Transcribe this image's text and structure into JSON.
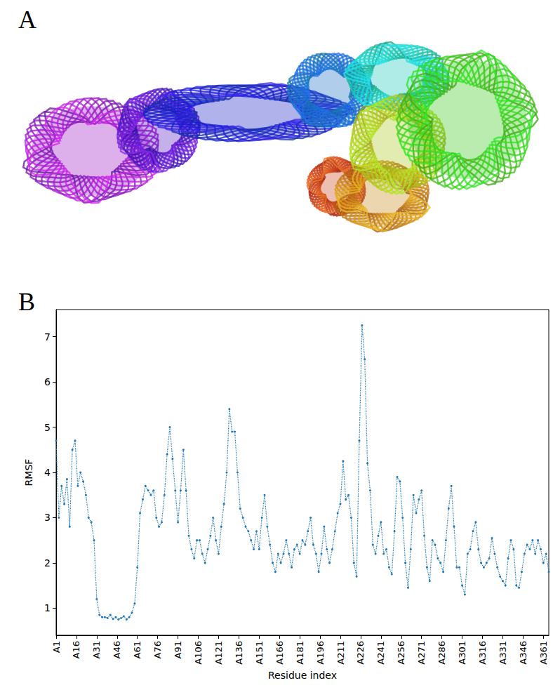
{
  "panel_labels": [
    "A",
    "B"
  ],
  "chart_data": {
    "type": "line",
    "x_label": "Residue index",
    "y_label": "RMSF",
    "color": "#1f77b4",
    "marker": "circle",
    "line_style": "dotted",
    "grid": false,
    "xlim": [
      1,
      365
    ],
    "ylim": [
      0.4,
      7.6
    ],
    "yticks": [
      1,
      2,
      3,
      4,
      5,
      6,
      7
    ],
    "xticks": [
      {
        "value": 1,
        "label": "A1"
      },
      {
        "value": 16,
        "label": "A16"
      },
      {
        "value": 31,
        "label": "A31"
      },
      {
        "value": 46,
        "label": "A46"
      },
      {
        "value": 61,
        "label": "A61"
      },
      {
        "value": 76,
        "label": "A76"
      },
      {
        "value": 91,
        "label": "A91"
      },
      {
        "value": 106,
        "label": "A106"
      },
      {
        "value": 121,
        "label": "A121"
      },
      {
        "value": 136,
        "label": "A136"
      },
      {
        "value": 151,
        "label": "A151"
      },
      {
        "value": 166,
        "label": "A166"
      },
      {
        "value": 181,
        "label": "A181"
      },
      {
        "value": 196,
        "label": "A196"
      },
      {
        "value": 211,
        "label": "A211"
      },
      {
        "value": 226,
        "label": "A226"
      },
      {
        "value": 241,
        "label": "A241"
      },
      {
        "value": 256,
        "label": "A256"
      },
      {
        "value": 271,
        "label": "A271"
      },
      {
        "value": 286,
        "label": "A286"
      },
      {
        "value": 301,
        "label": "A301"
      },
      {
        "value": 316,
        "label": "A316"
      },
      {
        "value": 331,
        "label": "A331"
      },
      {
        "value": 346,
        "label": "A346"
      },
      {
        "value": 361,
        "label": "A361"
      }
    ],
    "x": [
      1,
      3,
      5,
      7,
      9,
      11,
      13,
      15,
      17,
      19,
      21,
      23,
      25,
      27,
      29,
      31,
      33,
      35,
      37,
      39,
      41,
      43,
      45,
      47,
      49,
      51,
      53,
      55,
      57,
      59,
      61,
      63,
      65,
      67,
      69,
      71,
      73,
      75,
      77,
      79,
      81,
      83,
      85,
      87,
      89,
      91,
      93,
      95,
      97,
      99,
      101,
      103,
      105,
      107,
      109,
      111,
      113,
      115,
      117,
      119,
      121,
      123,
      125,
      127,
      129,
      131,
      133,
      135,
      137,
      139,
      141,
      143,
      145,
      147,
      149,
      151,
      153,
      155,
      157,
      159,
      161,
      163,
      165,
      167,
      169,
      171,
      173,
      175,
      177,
      179,
      181,
      183,
      185,
      187,
      189,
      191,
      193,
      195,
      197,
      199,
      201,
      203,
      205,
      207,
      209,
      211,
      213,
      215,
      217,
      219,
      221,
      223,
      225,
      227,
      229,
      231,
      233,
      235,
      237,
      239,
      241,
      243,
      245,
      247,
      249,
      251,
      253,
      255,
      257,
      259,
      261,
      263,
      265,
      267,
      269,
      271,
      273,
      275,
      277,
      279,
      281,
      283,
      285,
      287,
      289,
      291,
      293,
      295,
      297,
      299,
      301,
      303,
      305,
      307,
      309,
      311,
      313,
      315,
      317,
      319,
      321,
      323,
      325,
      327,
      329,
      331,
      333,
      335,
      337,
      339,
      341,
      343,
      345,
      347,
      349,
      351,
      353,
      355,
      357,
      359,
      361,
      363,
      365
    ],
    "values": [
      4.7,
      3.0,
      3.7,
      3.3,
      3.85,
      2.8,
      4.5,
      4.7,
      3.7,
      4.0,
      3.8,
      3.5,
      3.0,
      2.9,
      2.5,
      1.2,
      0.85,
      0.8,
      0.8,
      0.78,
      0.85,
      0.76,
      0.8,
      0.75,
      0.78,
      0.82,
      0.75,
      0.8,
      0.9,
      1.1,
      1.9,
      3.1,
      3.4,
      3.7,
      3.6,
      3.5,
      3.6,
      3.0,
      2.8,
      2.9,
      3.5,
      4.4,
      5.0,
      4.3,
      3.6,
      2.9,
      3.6,
      4.5,
      3.6,
      2.6,
      2.3,
      2.1,
      2.5,
      2.5,
      2.2,
      2.0,
      2.3,
      2.6,
      3.0,
      2.5,
      2.2,
      2.8,
      3.3,
      4.0,
      5.4,
      4.9,
      4.9,
      4.0,
      3.2,
      3.0,
      2.8,
      2.7,
      2.5,
      2.3,
      2.7,
      2.3,
      3.0,
      3.5,
      2.8,
      2.4,
      2.0,
      1.8,
      2.2,
      2.0,
      2.2,
      2.5,
      2.2,
      1.9,
      2.3,
      2.4,
      2.2,
      2.5,
      2.4,
      2.7,
      3.0,
      2.4,
      2.2,
      1.8,
      2.2,
      2.8,
      2.3,
      2.0,
      2.3,
      2.7,
      3.1,
      3.3,
      4.25,
      3.4,
      3.5,
      3.0,
      2.0,
      1.7,
      4.7,
      7.25,
      6.5,
      4.2,
      3.6,
      2.4,
      2.2,
      2.6,
      2.9,
      2.2,
      2.3,
      1.9,
      1.75,
      2.7,
      3.9,
      3.8,
      3.0,
      2.0,
      1.45,
      2.3,
      3.5,
      3.1,
      3.4,
      3.6,
      2.6,
      1.9,
      1.6,
      2.5,
      2.4,
      2.1,
      2.0,
      1.8,
      2.5,
      3.2,
      3.7,
      2.8,
      1.9,
      1.9,
      1.5,
      1.3,
      2.2,
      2.3,
      2.7,
      2.9,
      2.3,
      2.0,
      1.9,
      2.0,
      2.1,
      2.55,
      2.2,
      1.9,
      1.7,
      1.6,
      1.5,
      2.1,
      2.5,
      2.3,
      1.5,
      1.45,
      1.8,
      2.2,
      2.4,
      2.3,
      2.5,
      2.2,
      2.5,
      2.3,
      2.0,
      2.2,
      1.8
    ]
  }
}
